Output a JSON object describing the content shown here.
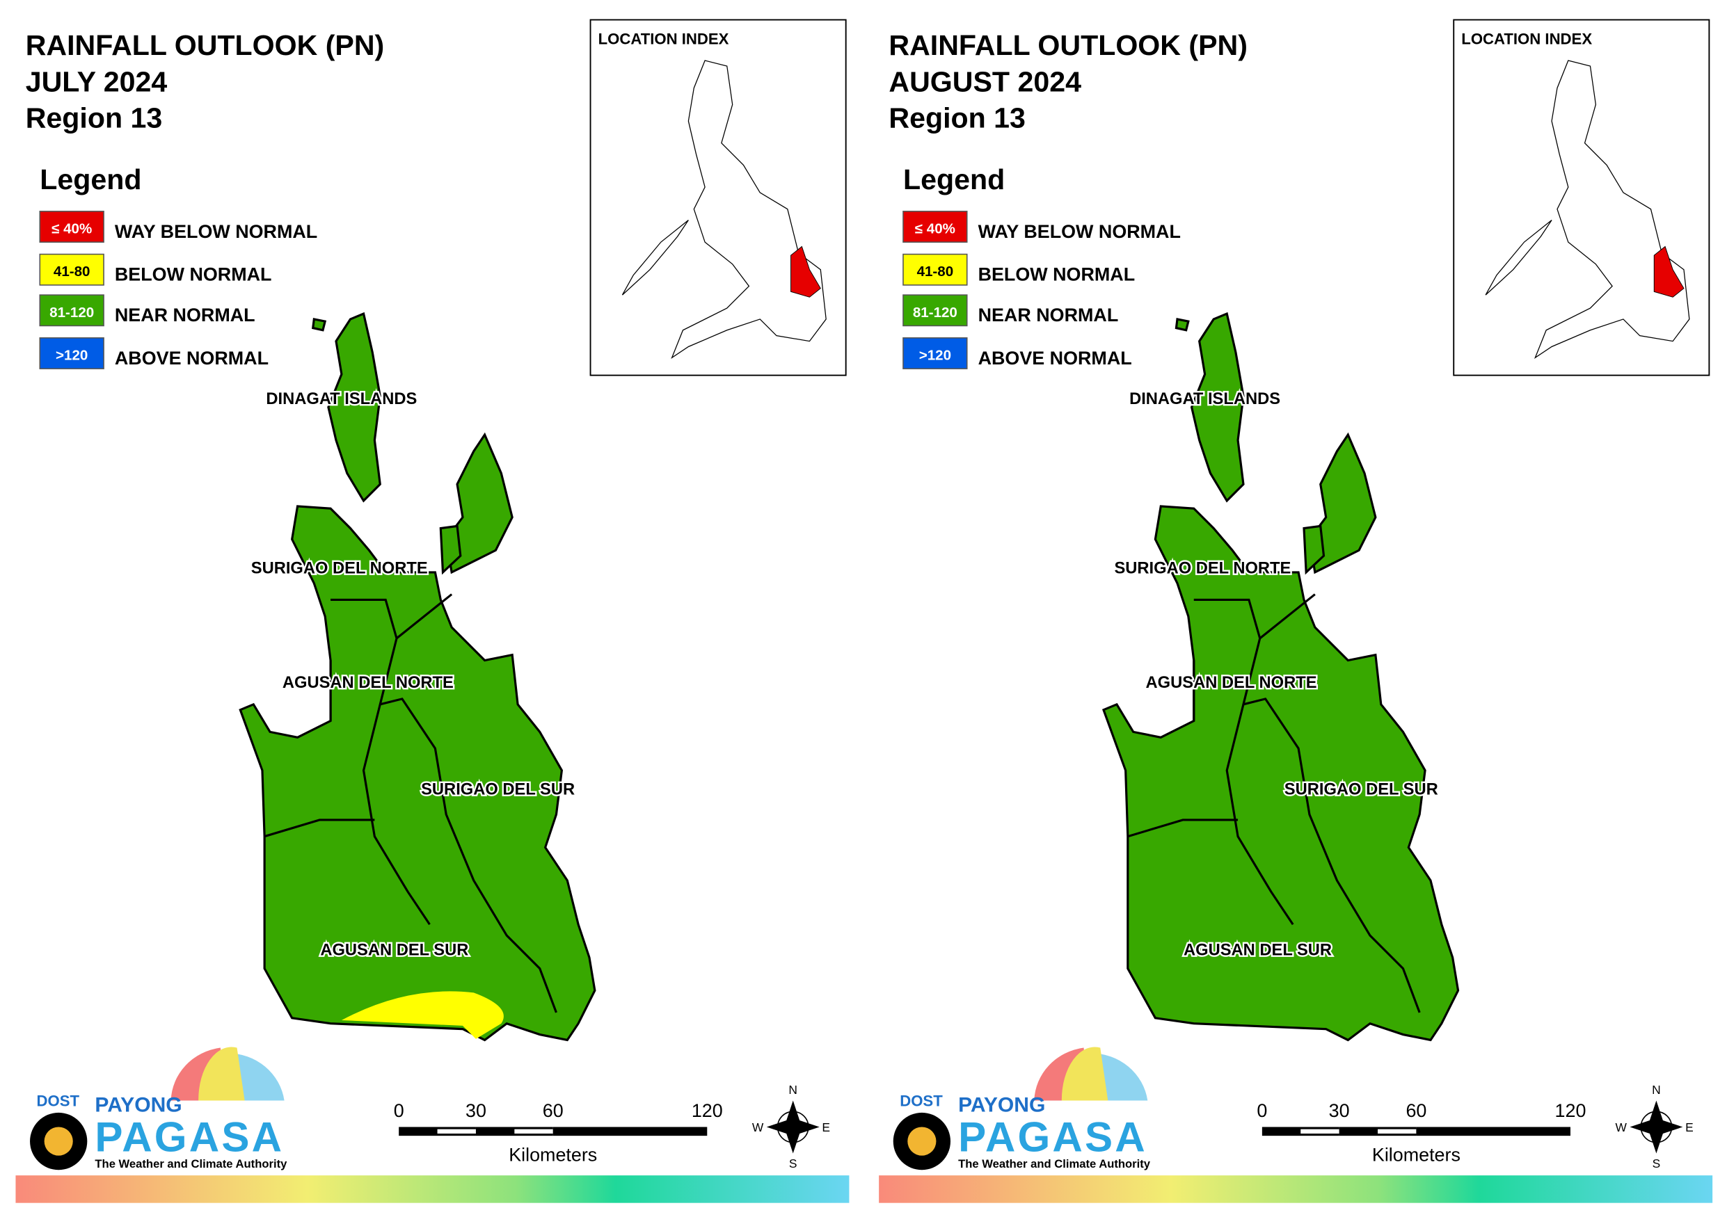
{
  "panels": [
    {
      "title": [
        "RAINFALL OUTLOOK (PN)",
        "JULY 2024",
        "Region 13"
      ],
      "legend": {
        "title": "Legend",
        "items": [
          {
            "range": "≤ 40%",
            "label": "WAY BELOW NORMAL",
            "color": "#e60000"
          },
          {
            "range": "41-80",
            "label": "BELOW NORMAL",
            "color": "#ffff00"
          },
          {
            "range": "81-120",
            "label": "NEAR NORMAL",
            "color": "#38a800"
          },
          {
            "range": ">120",
            "label": "ABOVE NORMAL",
            "color": "#005ce6"
          }
        ]
      },
      "location_index": "LOCATION INDEX",
      "provinces": [
        "DINAGAT ISLANDS",
        "SURIGAO DEL NORTE",
        "AGUSAN DEL NORTE",
        "SURIGAO DEL SUR",
        "AGUSAN DEL SUR"
      ],
      "scale": {
        "ticks": [
          0,
          30,
          60,
          120
        ],
        "unit": "Kilometers"
      },
      "compass": [
        "N",
        "E",
        "S",
        "W"
      ],
      "logo": {
        "agency": "DOST",
        "program": "PAYONG",
        "name": "PAGASA",
        "tagline": "The Weather and Climate Authority"
      }
    },
    {
      "title": [
        "RAINFALL OUTLOOK (PN)",
        "AUGUST 2024",
        "Region 13"
      ],
      "legend": {
        "title": "Legend",
        "items": [
          {
            "range": "≤ 40%",
            "label": "WAY BELOW NORMAL",
            "color": "#e60000"
          },
          {
            "range": "41-80",
            "label": "BELOW NORMAL",
            "color": "#ffff00"
          },
          {
            "range": "81-120",
            "label": "NEAR NORMAL",
            "color": "#38a800"
          },
          {
            "range": ">120",
            "label": "ABOVE NORMAL",
            "color": "#005ce6"
          }
        ]
      },
      "location_index": "LOCATION INDEX",
      "provinces": [
        "DINAGAT ISLANDS",
        "SURIGAO DEL NORTE",
        "AGUSAN DEL NORTE",
        "SURIGAO DEL SUR",
        "AGUSAN DEL SUR"
      ],
      "scale": {
        "ticks": [
          0,
          30,
          60,
          120
        ],
        "unit": "Kilometers"
      },
      "compass": [
        "N",
        "E",
        "S",
        "W"
      ],
      "logo": {
        "agency": "DOST",
        "program": "PAYONG",
        "name": "PAGASA",
        "tagline": "The Weather and Climate Authority"
      }
    }
  ]
}
